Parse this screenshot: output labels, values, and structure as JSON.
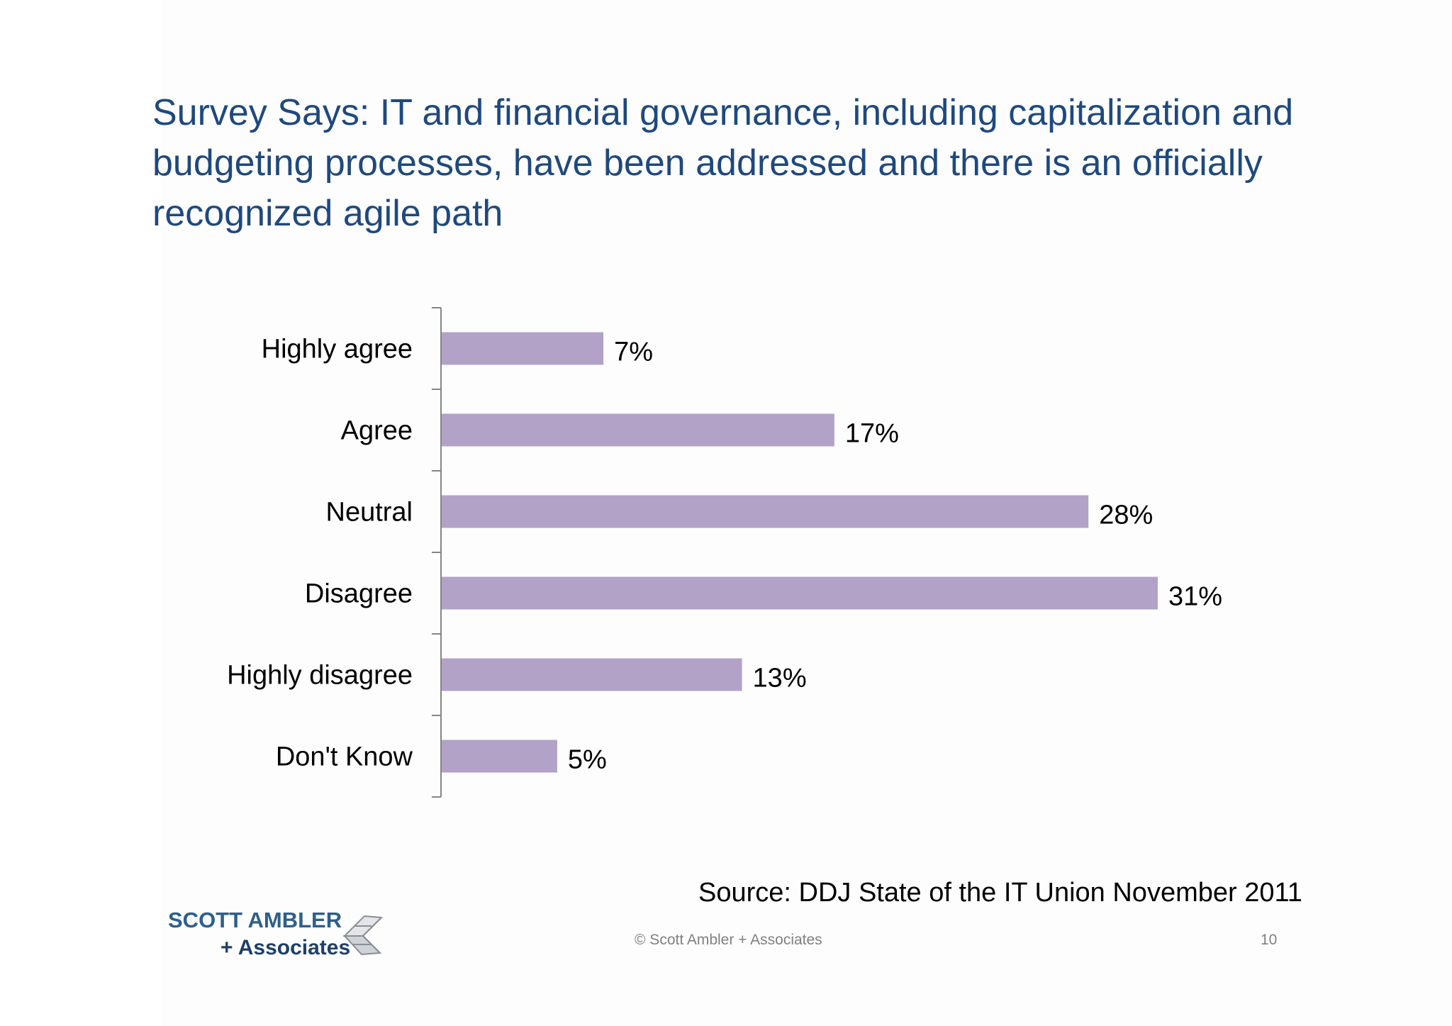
{
  "slide": {
    "title": "Survey Says: IT and financial governance, including capitalization and budgeting processes, have been addressed and there is an officially recognized agile path",
    "source": "Source: DDJ State of the IT Union November 2011",
    "copyright": "© Scott Ambler + Associates",
    "page_number": "10"
  },
  "logo": {
    "line1": "SCOTT AMBLER",
    "line2": "+ Associates"
  },
  "colors": {
    "title": "#1f497d",
    "bar": "#b2a2c7",
    "axis": "#868686"
  },
  "chart_data": {
    "type": "bar",
    "orientation": "horizontal",
    "categories": [
      "Highly agree",
      "Agree",
      "Neutral",
      "Disagree",
      "Highly disagree",
      "Don't Know"
    ],
    "values": [
      7,
      17,
      28,
      31,
      13,
      5
    ],
    "data_labels": [
      "7%",
      "17%",
      "28%",
      "31%",
      "13%",
      "5%"
    ],
    "unit": "%",
    "xlim": [
      0,
      35
    ],
    "grid": false,
    "legend": false
  }
}
